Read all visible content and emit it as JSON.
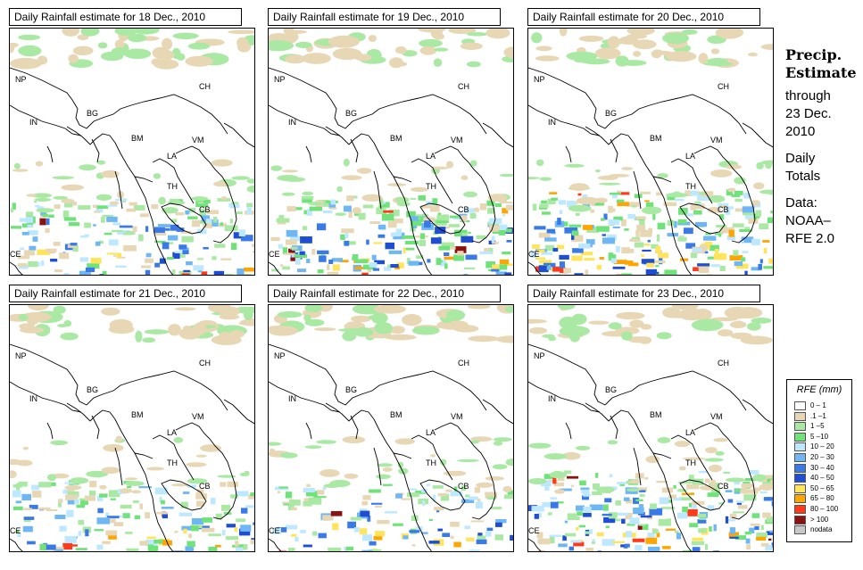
{
  "panels": [
    {
      "title": "Daily Rainfall estimate for  18 Dec., 2010",
      "intensity": 0.75
    },
    {
      "title": "Daily Rainfall estimate for  19 Dec., 2010",
      "intensity": 0.85
    },
    {
      "title": "Daily Rainfall estimate for  20 Dec., 2010",
      "intensity": 1.0
    },
    {
      "title": "Daily Rainfall estimate for  21 Dec., 2010",
      "intensity": 0.6
    },
    {
      "title": "Daily Rainfall estimate for  22 Dec., 2010",
      "intensity": 0.5
    },
    {
      "title": "Daily Rainfall estimate for  23 Dec., 2010",
      "intensity": 0.9
    }
  ],
  "country_labels": [
    "NP",
    "IN",
    "BG",
    "BM",
    "CH",
    "VM",
    "LA",
    "TH",
    "CB",
    "CE"
  ],
  "side": {
    "title_line1": "Precip.",
    "title_line2": "Estimate",
    "line_through": "through",
    "line_date1": "23 Dec.",
    "line_date2": "2010",
    "line_daily": "Daily",
    "line_totals": "Totals",
    "line_data": "Data:",
    "line_noaa": "NOAA–",
    "line_rfe": "RFE 2.0"
  },
  "legend": {
    "title": "RFE (mm)",
    "items": [
      {
        "label": "0 – 1",
        "color": "#ffffff"
      },
      {
        "label": ".1 –1",
        "color": "#e8d7b5"
      },
      {
        "label": "1 –5",
        "color": "#a9e9a3"
      },
      {
        "label": "5 –10",
        "color": "#6fe27a"
      },
      {
        "label": "10 – 20",
        "color": "#bde8ff"
      },
      {
        "label": "20 – 30",
        "color": "#6fb6f4"
      },
      {
        "label": "30 – 40",
        "color": "#3a79e8"
      },
      {
        "label": "40 – 50",
        "color": "#1f4fd0"
      },
      {
        "label": "50 – 65",
        "color": "#ffe45c"
      },
      {
        "label": "65 – 80",
        "color": "#ffa500"
      },
      {
        "label": "80 – 100",
        "color": "#ff3a1a"
      },
      {
        "label": "> 100",
        "color": "#8b1010"
      },
      {
        "label": "nodata",
        "color": "#c8c8c8"
      }
    ]
  }
}
